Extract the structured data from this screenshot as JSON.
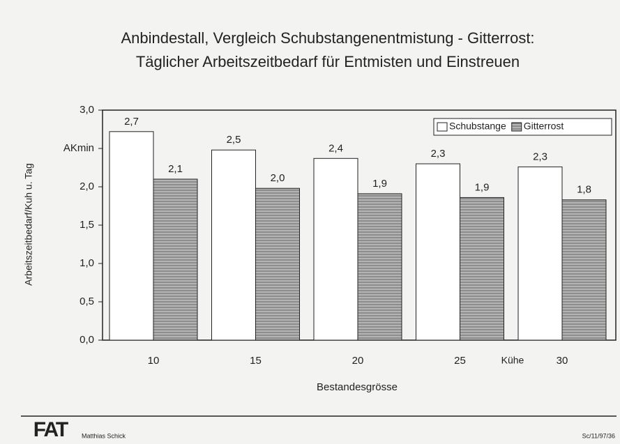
{
  "chart_data": {
    "type": "bar",
    "title": [
      "Anbindestall, Vergleich Schubstangenentmistung - Gitterrost:",
      "Täglicher Arbeitszeitbedarf für Entmisten und Einstreuen"
    ],
    "categories": [
      "10",
      "15",
      "20",
      "25",
      "30"
    ],
    "series": [
      {
        "name": "Schubstange",
        "color": "#ffffff",
        "values": [
          2.72,
          2.48,
          2.37,
          2.3,
          2.26
        ],
        "value_labels": [
          "2,7",
          "2,5",
          "2,4",
          "2,3",
          "2,3"
        ]
      },
      {
        "name": "Gitterrost",
        "color": "#b4b4b4",
        "hatch": true,
        "values": [
          2.1,
          1.98,
          1.91,
          1.86,
          1.83
        ],
        "value_labels": [
          "2,1",
          "2,0",
          "1,9",
          "1,9",
          "1,8"
        ]
      }
    ],
    "ylim": [
      0,
      3
    ],
    "yticks": [
      {
        "value": 0,
        "label": "0,0"
      },
      {
        "value": 0.5,
        "label": "0,5"
      },
      {
        "value": 1,
        "label": "1,0"
      },
      {
        "value": 1.5,
        "label": "1,5"
      },
      {
        "value": 2,
        "label": "2,0"
      },
      {
        "value": 2.5,
        "label": "AKmin"
      },
      {
        "value": 3,
        "label": "3,0"
      }
    ],
    "y_label": "Arbeitszeitbedarf/Kuh u. Tag",
    "x_label": "Bestandesgrösse",
    "annotation": "Kühe",
    "legend": "upper right"
  },
  "footer": {
    "logo": "FAT",
    "author": "Matthias Schick",
    "code": "Sc/11/97/36"
  }
}
